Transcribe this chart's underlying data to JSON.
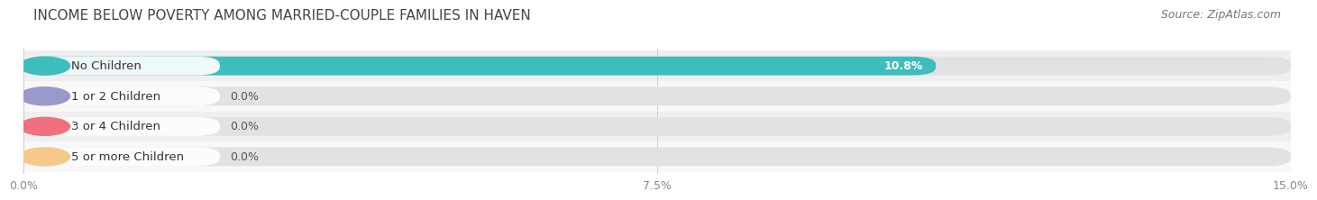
{
  "title": "INCOME BELOW POVERTY AMONG MARRIED-COUPLE FAMILIES IN HAVEN",
  "source": "Source: ZipAtlas.com",
  "categories": [
    "No Children",
    "1 or 2 Children",
    "3 or 4 Children",
    "5 or more Children"
  ],
  "values": [
    10.8,
    0.0,
    0.0,
    0.0
  ],
  "bar_colors": [
    "#3dbdbd",
    "#9999cc",
    "#f07080",
    "#f5c98a"
  ],
  "xlim": [
    0,
    15.0
  ],
  "xticks": [
    0.0,
    7.5,
    15.0
  ],
  "xticklabels": [
    "0.0%",
    "7.5%",
    "15.0%"
  ],
  "title_fontsize": 11,
  "source_fontsize": 9,
  "tick_fontsize": 9,
  "label_fontsize": 9.5,
  "value_fontsize": 9,
  "bar_height": 0.62,
  "strip_colors": [
    "#efefef",
    "#f8f8f8",
    "#efefef",
    "#f8f8f8"
  ]
}
